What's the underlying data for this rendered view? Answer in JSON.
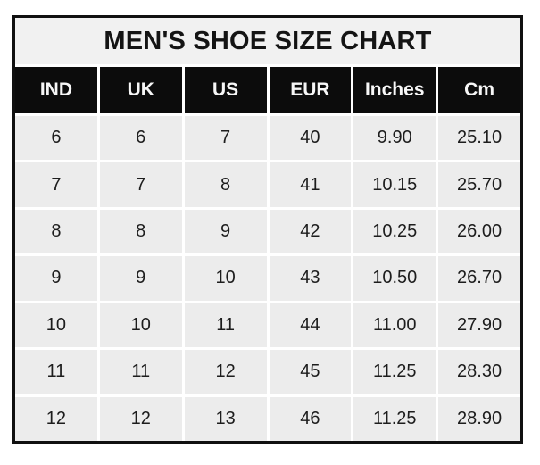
{
  "chart_data": {
    "type": "table",
    "title": "MEN'S SHOE SIZE CHART",
    "columns": [
      "IND",
      "UK",
      "US",
      "EUR",
      "Inches",
      "Cm"
    ],
    "rows": [
      [
        "6",
        "6",
        "7",
        "40",
        "9.90",
        "25.10"
      ],
      [
        "7",
        "7",
        "8",
        "41",
        "10.15",
        "25.70"
      ],
      [
        "8",
        "8",
        "9",
        "42",
        "10.25",
        "26.00"
      ],
      [
        "9",
        "9",
        "10",
        "43",
        "10.50",
        "26.70"
      ],
      [
        "10",
        "10",
        "11",
        "44",
        "11.00",
        "27.90"
      ],
      [
        "11",
        "11",
        "12",
        "45",
        "11.25",
        "28.30"
      ],
      [
        "12",
        "12",
        "13",
        "46",
        "11.25",
        "28.90"
      ]
    ],
    "layout": {
      "legend": "none",
      "grid": "white gridlines between cells, black outer border"
    }
  },
  "colors": {
    "page_bg": "#ffffff",
    "outer_border": "#101010",
    "title_bg": "#f1f1f1",
    "header_bg": "#0c0c0c",
    "header_text": "#f7f7f7",
    "cell_bg": "#ececec",
    "cell_text": "#1d1d1d"
  }
}
